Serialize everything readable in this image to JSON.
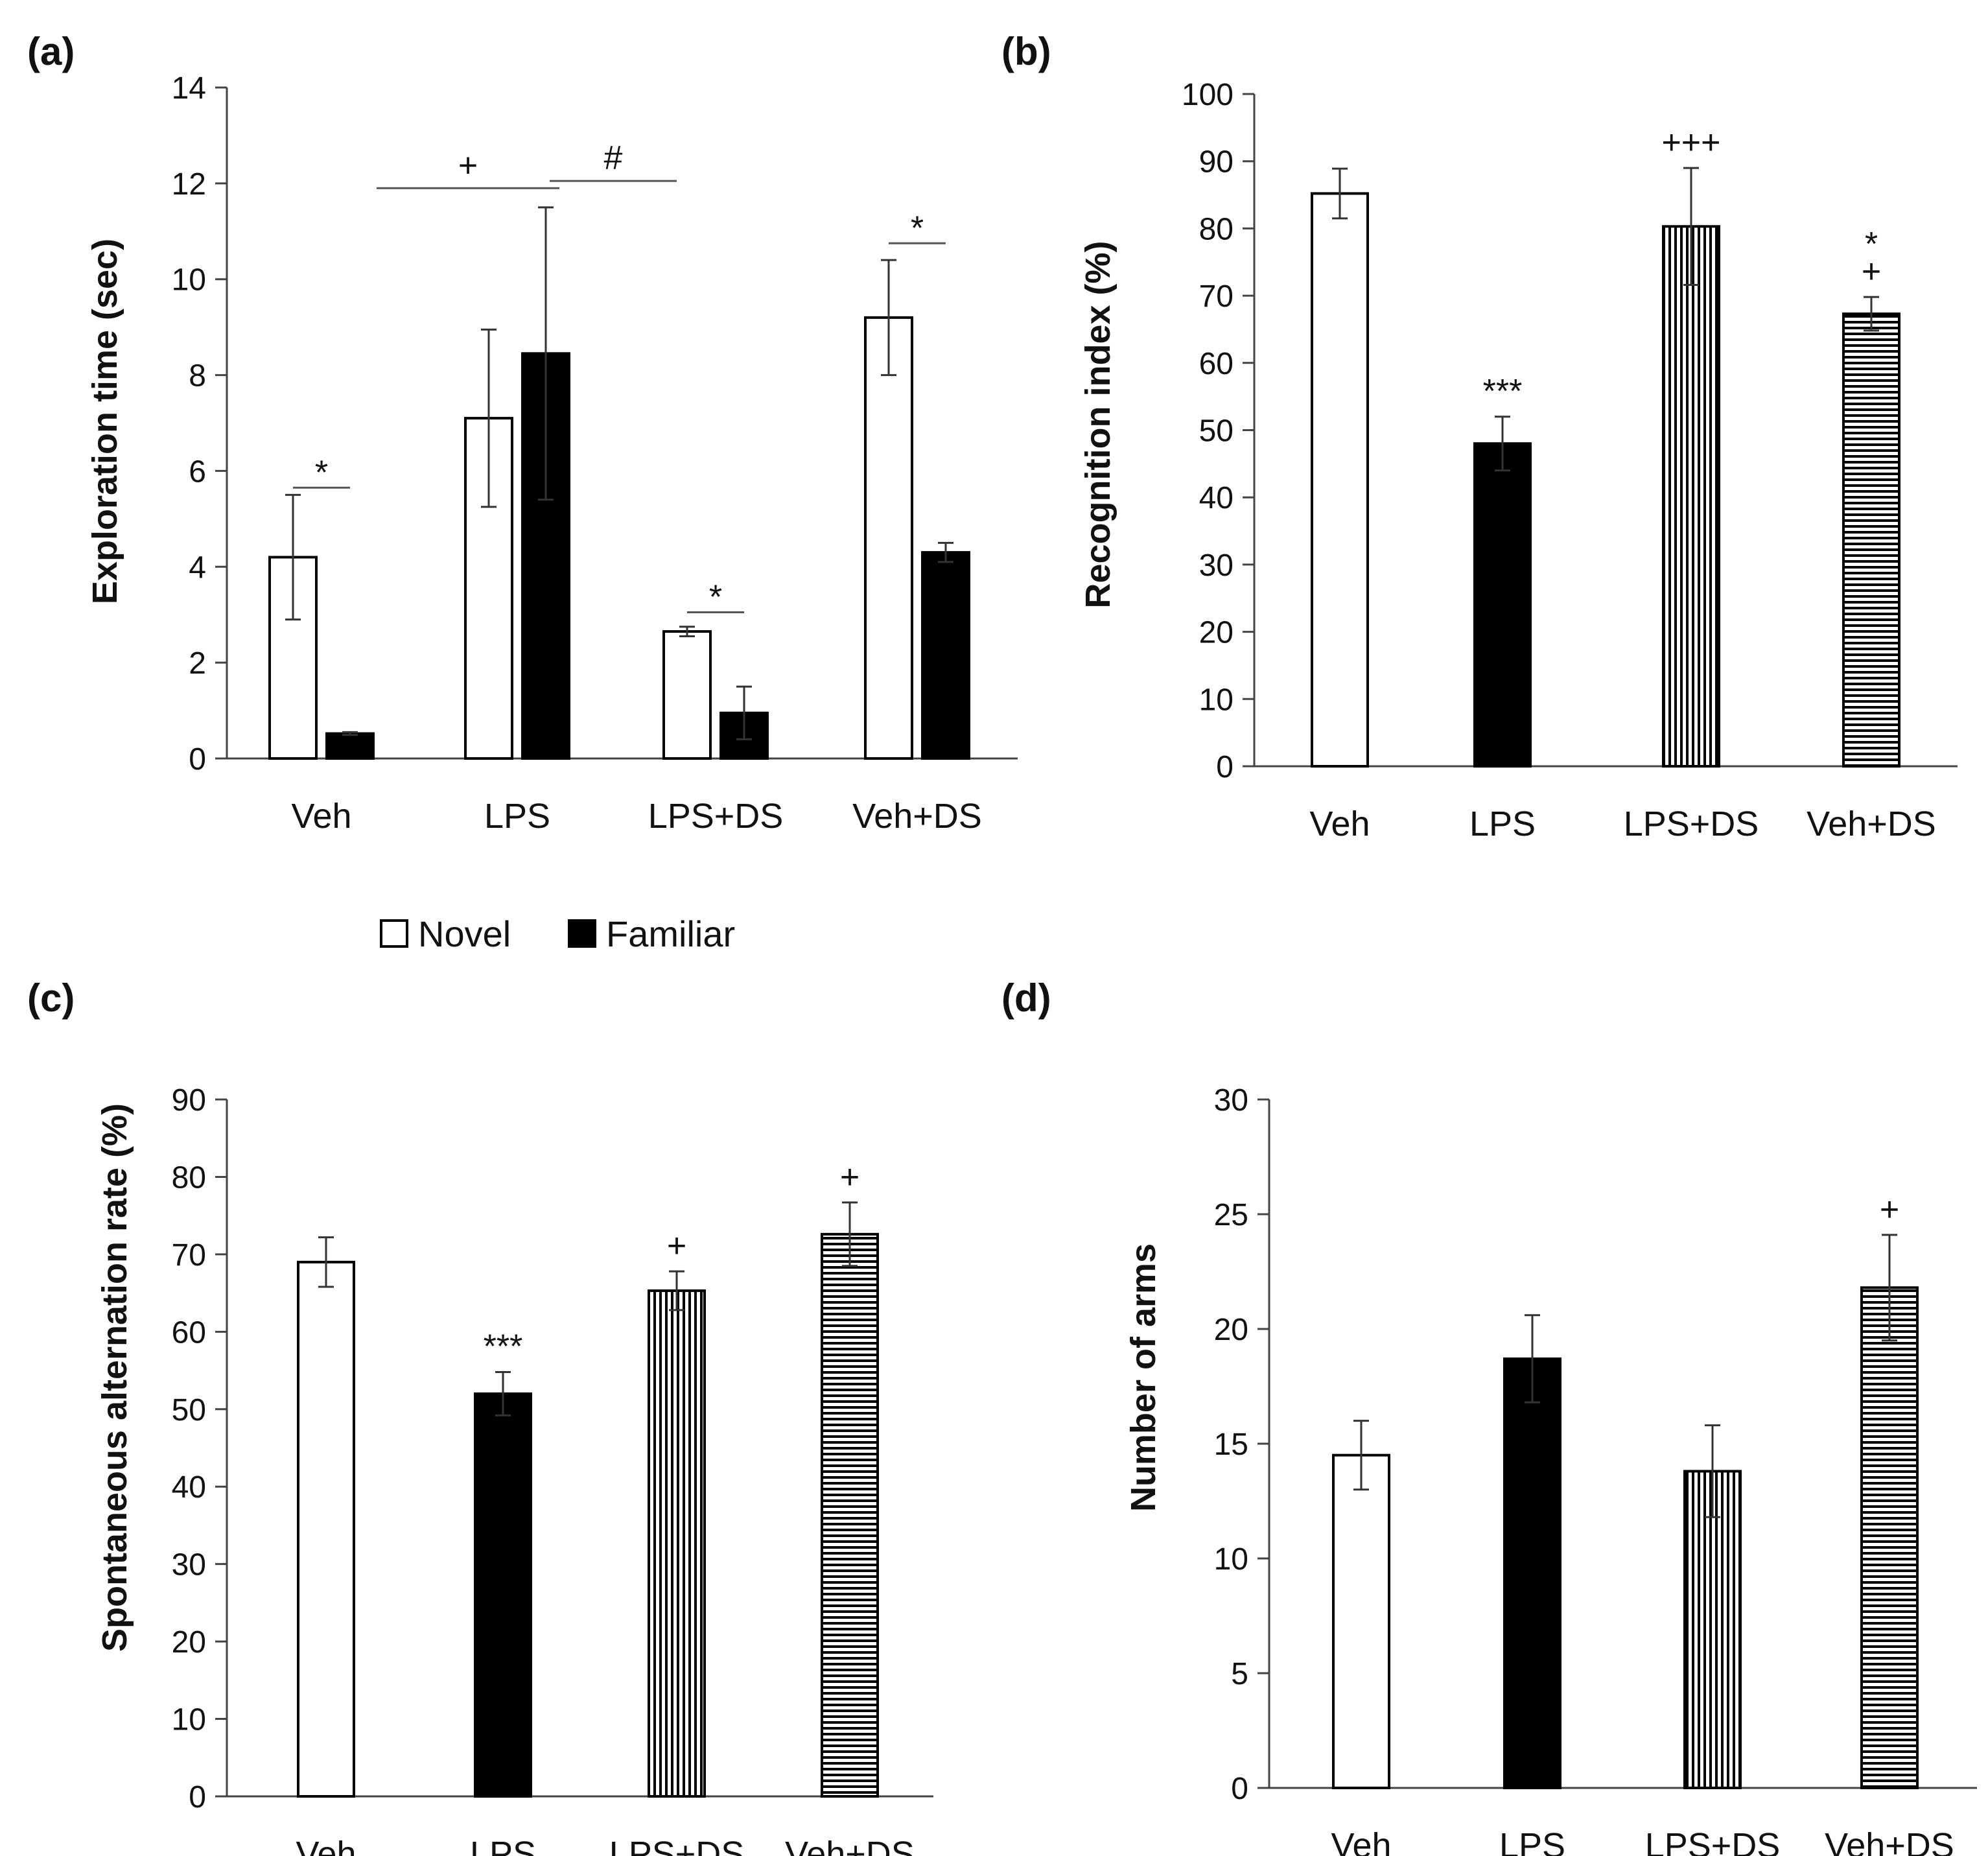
{
  "legend": {
    "novel": "Novel",
    "familiar": "Familiar"
  },
  "colors": {
    "novel_fill": "#ffffff",
    "familiar_fill": "#000000",
    "axis": "#444444",
    "stroke": "#000000"
  },
  "chart_data": [
    {
      "panel": "(a)",
      "type": "bar",
      "title": "",
      "ylabel": "Exploration time (sec)",
      "xlabel": "",
      "ylim": [
        0,
        14
      ],
      "yticks": [
        0,
        2,
        4,
        6,
        8,
        10,
        12,
        14
      ],
      "categories": [
        "Veh",
        "LPS",
        "LPS+DS",
        "Veh+DS"
      ],
      "series": [
        {
          "name": "Novel",
          "pattern": "white",
          "values": [
            4.2,
            7.1,
            2.65,
            9.2
          ],
          "errors": [
            1.3,
            1.85,
            0.1,
            1.2
          ]
        },
        {
          "name": "Familiar",
          "pattern": "black",
          "values": [
            0.52,
            8.45,
            0.95,
            4.3
          ],
          "errors": [
            0.03,
            3.05,
            0.55,
            0.2
          ]
        }
      ],
      "annotations": [
        {
          "text": "*",
          "type": "pair",
          "category": 0,
          "y": 5.65
        },
        {
          "text": "*",
          "type": "pair",
          "category": 2,
          "y": 3.05
        },
        {
          "text": "*",
          "type": "pair",
          "category": 3,
          "y": 10.75
        },
        {
          "text": "+",
          "type": "span",
          "from": 0,
          "to": 1,
          "y": 11.9
        },
        {
          "text": "#",
          "type": "span",
          "from": 1,
          "to": 2,
          "y": 12.05
        }
      ]
    },
    {
      "panel": "(b)",
      "type": "bar",
      "title": "",
      "ylabel": "Recognition index (%)",
      "xlabel": "",
      "ylim": [
        0,
        100
      ],
      "yticks": [
        0,
        10,
        20,
        30,
        40,
        50,
        60,
        70,
        80,
        90,
        100
      ],
      "categories": [
        "Veh",
        "LPS",
        "LPS+DS",
        "Veh+DS"
      ],
      "patterns": [
        "white",
        "black",
        "vstripe",
        "hstripe"
      ],
      "values": [
        85.2,
        48.0,
        80.3,
        67.3
      ],
      "errors": [
        3.7,
        4.0,
        8.7,
        2.5
      ],
      "annotations": [
        "",
        "***",
        "+++",
        "*\n+"
      ]
    },
    {
      "panel": "(c)",
      "type": "bar",
      "title": "",
      "ylabel": "Spontaneous alternation rate (%)",
      "xlabel": "",
      "ylim": [
        0,
        90
      ],
      "yticks": [
        0,
        10,
        20,
        30,
        40,
        50,
        60,
        70,
        80,
        90
      ],
      "categories": [
        "Veh",
        "LPS",
        "LPS+DS",
        "Veh+DS"
      ],
      "patterns": [
        "white",
        "black",
        "vstripe",
        "hstripe"
      ],
      "values": [
        69.0,
        52.0,
        65.3,
        72.6
      ],
      "errors": [
        3.2,
        2.8,
        2.5,
        4.1
      ],
      "annotations": [
        "",
        "***",
        "+",
        "+"
      ]
    },
    {
      "panel": "(d)",
      "type": "bar",
      "title": "",
      "ylabel": "Number of arms",
      "xlabel": "",
      "ylim": [
        0,
        30
      ],
      "yticks": [
        0,
        5,
        10,
        15,
        20,
        25,
        30
      ],
      "categories": [
        "Veh",
        "LPS",
        "LPS+DS",
        "Veh+DS"
      ],
      "patterns": [
        "white",
        "black",
        "vstripe",
        "hstripe"
      ],
      "values": [
        14.5,
        18.7,
        13.8,
        21.8
      ],
      "errors": [
        1.5,
        1.9,
        2.0,
        2.3
      ],
      "annotations": [
        "",
        "",
        "",
        "+"
      ]
    }
  ]
}
